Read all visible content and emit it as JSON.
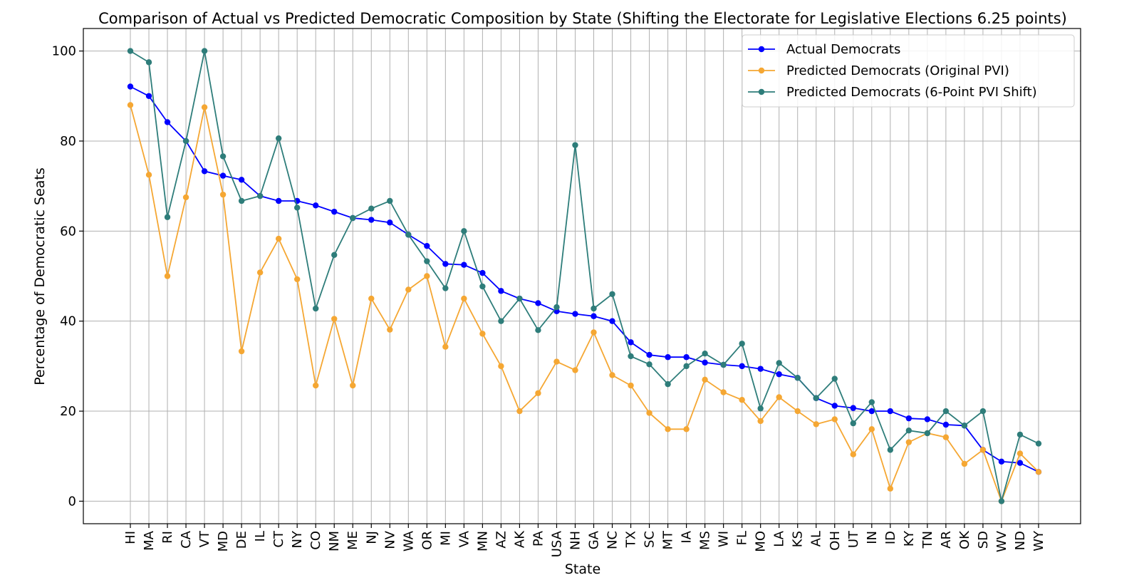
{
  "chart_data": {
    "type": "line",
    "title": "Comparison of Actual vs Predicted Democratic Composition by State (Shifting the Electorate for Legislative Elections 6.25 points)",
    "xlabel": "State",
    "ylabel": "Percentage of Democratic Seats",
    "ylim": [
      -5,
      105
    ],
    "yticks": [
      0,
      20,
      40,
      60,
      80,
      100
    ],
    "grid": true,
    "legend_position": "top-right",
    "categories": [
      "HI",
      "MA",
      "RI",
      "CA",
      "VT",
      "MD",
      "DE",
      "IL",
      "CT",
      "NY",
      "CO",
      "NM",
      "ME",
      "NJ",
      "NV",
      "WA",
      "OR",
      "MI",
      "VA",
      "MN",
      "AZ",
      "AK",
      "PA",
      "USA",
      "NH",
      "GA",
      "NC",
      "TX",
      "SC",
      "MT",
      "IA",
      "MS",
      "WI",
      "FL",
      "MO",
      "LA",
      "KS",
      "AL",
      "OH",
      "UT",
      "IN",
      "ID",
      "KY",
      "TN",
      "AR",
      "OK",
      "SD",
      "WV",
      "ND",
      "WY"
    ],
    "series": [
      {
        "name": "Actual Democrats",
        "color": "#0000ff",
        "values": [
          92.1,
          90.0,
          84.2,
          80.0,
          73.3,
          72.3,
          71.4,
          67.8,
          66.7,
          66.7,
          65.7,
          64.3,
          62.9,
          62.5,
          61.9,
          59.2,
          56.7,
          52.7,
          52.5,
          50.7,
          46.7,
          45.0,
          44.0,
          42.2,
          41.6,
          41.1,
          40.0,
          35.3,
          32.5,
          32.0,
          32.0,
          30.8,
          30.3,
          30.0,
          29.4,
          28.2,
          27.4,
          22.9,
          21.2,
          20.7,
          20.0,
          20.0,
          18.4,
          18.2,
          17.0,
          16.8,
          11.4,
          8.8,
          8.5,
          6.5
        ]
      },
      {
        "name": "Predicted Democrats (Original PVI)",
        "color": "#f5a733",
        "values": [
          88.0,
          72.5,
          50.0,
          67.5,
          87.5,
          68.1,
          33.3,
          50.8,
          58.3,
          49.3,
          25.7,
          40.5,
          25.7,
          45.0,
          38.1,
          47.0,
          50.0,
          34.3,
          45.0,
          37.2,
          30.0,
          20.0,
          24.0,
          31.0,
          29.1,
          37.5,
          28.0,
          25.7,
          19.6,
          16.0,
          16.0,
          27.0,
          24.2,
          22.5,
          17.8,
          23.1,
          20.0,
          17.1,
          18.2,
          10.4,
          16.0,
          2.8,
          13.1,
          15.1,
          14.2,
          8.3,
          11.4,
          0.0,
          10.6,
          6.5
        ]
      },
      {
        "name": "Predicted Democrats (6-Point PVI Shift)",
        "color": "#2e7d7a",
        "values": [
          100.0,
          97.5,
          63.1,
          80.0,
          100.0,
          76.6,
          66.7,
          67.8,
          80.6,
          65.2,
          42.8,
          54.7,
          62.9,
          65.0,
          66.7,
          59.2,
          53.3,
          47.3,
          60.0,
          47.7,
          40.0,
          45.0,
          38.0,
          43.1,
          79.1,
          42.8,
          46.0,
          32.2,
          30.4,
          26.0,
          30.0,
          32.8,
          30.3,
          35.0,
          20.6,
          30.7,
          27.4,
          22.9,
          27.2,
          17.3,
          22.0,
          11.4,
          15.7,
          15.1,
          20.0,
          16.8,
          20.0,
          0.0,
          14.8,
          12.8
        ]
      }
    ]
  }
}
